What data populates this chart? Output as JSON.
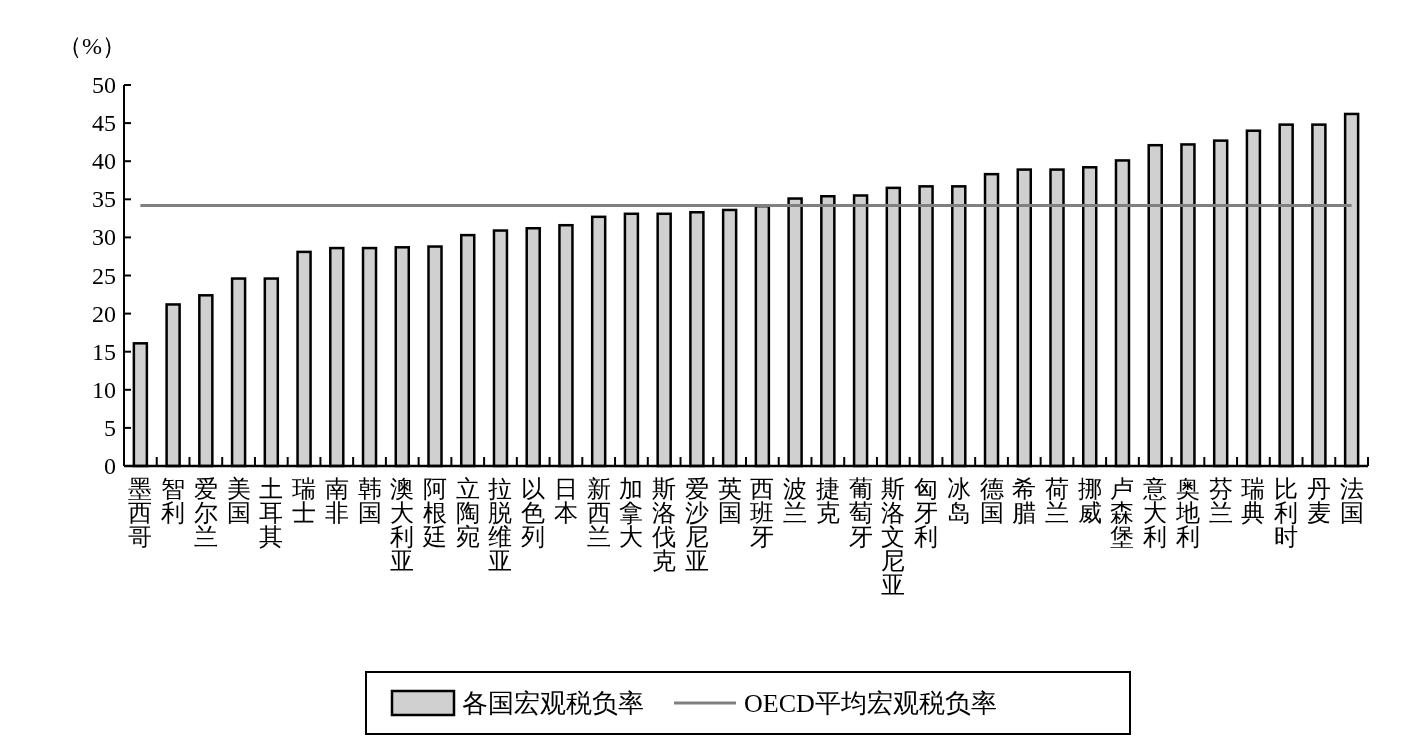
{
  "chart_data": {
    "type": "bar",
    "ylabel": "（%）",
    "categories": [
      "墨西哥",
      "智利",
      "爱尔兰",
      "美国",
      "土耳其",
      "瑞士",
      "南非",
      "韩国",
      "澳大利亚",
      "阿根廷",
      "立陶宛",
      "拉脱维亚",
      "以色列",
      "日本",
      "新西兰",
      "加拿大",
      "斯洛伐克",
      "爱沙尼亚",
      "英国",
      "西班牙",
      "波兰",
      "捷克",
      "葡萄牙",
      "斯洛文尼亚",
      "匈牙利",
      "冰岛",
      "德国",
      "希腊",
      "荷兰",
      "挪威",
      "卢森堡",
      "意大利",
      "奥地利",
      "芬兰",
      "瑞典",
      "比利时",
      "丹麦",
      "法国"
    ],
    "series": [
      {
        "name": "各国宏观税负率",
        "color": "#d0d0d0",
        "values": [
          16.1,
          21.2,
          22.4,
          24.6,
          24.6,
          28.1,
          28.6,
          28.6,
          28.7,
          28.8,
          30.3,
          30.9,
          31.2,
          31.6,
          32.7,
          33.1,
          33.1,
          33.3,
          33.6,
          34.1,
          35.1,
          35.4,
          35.5,
          36.5,
          36.7,
          36.7,
          38.3,
          38.9,
          38.9,
          39.2,
          40.1,
          42.1,
          42.2,
          42.7,
          44.0,
          44.8,
          44.8,
          46.2
        ]
      },
      {
        "name": "OECD平均宏观税负率",
        "type": "line",
        "color": "#808080",
        "values": [
          34.2,
          34.2,
          34.2,
          34.2,
          34.2,
          34.2,
          34.2,
          34.2,
          34.2,
          34.2,
          34.2,
          34.2,
          34.2,
          34.2,
          34.2,
          34.2,
          34.2,
          34.2,
          34.2,
          34.2,
          34.2,
          34.2,
          34.2,
          34.2,
          34.2,
          34.2,
          34.2,
          34.2,
          34.2,
          34.2,
          34.2,
          34.2,
          34.2,
          34.2,
          34.2,
          34.2,
          34.2,
          34.2
        ]
      }
    ],
    "ylim": [
      0,
      50
    ],
    "yticks": [
      0,
      5,
      10,
      15,
      20,
      25,
      30,
      35,
      40,
      45,
      50
    ],
    "grid": false,
    "legend": "bottom"
  }
}
